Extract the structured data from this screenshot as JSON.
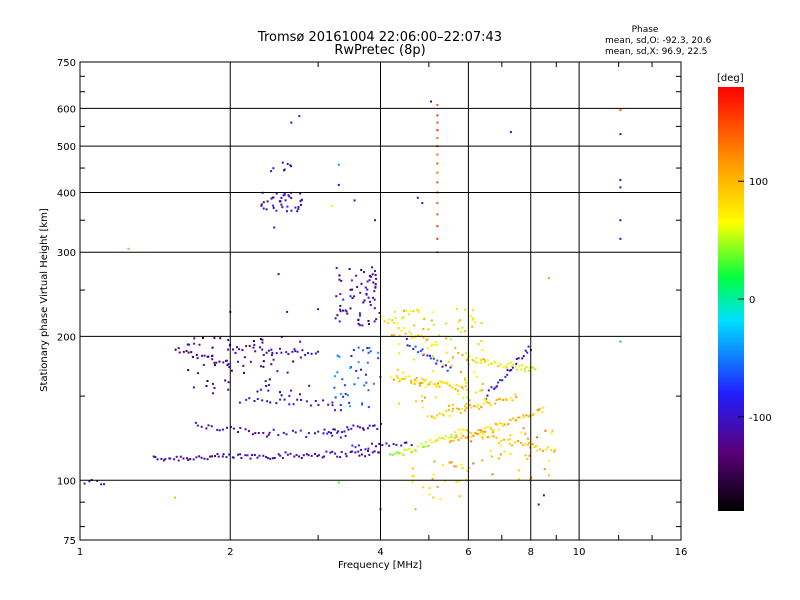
{
  "chart_data": {
    "type": "scatter",
    "title": "Tromsø 20161004 22:06:00–22:07:43",
    "subtitle": "RwPretec (8p)",
    "xlabel": "Frequency [MHz]",
    "ylabel": "Stationary phase Virtual Height [km]",
    "x_scale": "log",
    "y_scale": "log",
    "xlim": [
      1,
      16
    ],
    "ylim": [
      75,
      750
    ],
    "grid": true,
    "x_ticks": [
      "1",
      "2",
      "4",
      "6",
      "8",
      "10",
      "16"
    ],
    "x_tick_values": [
      1,
      2,
      4,
      6,
      8,
      10,
      16
    ],
    "y_ticks": [
      "75",
      "100",
      "200",
      "300",
      "400",
      "500",
      "600",
      "750"
    ],
    "y_tick_values": [
      75,
      100,
      200,
      300,
      400,
      500,
      600,
      750
    ],
    "phase_stats": {
      "heading": "Phase",
      "line_o": "mean, sd,O:  -92.3, 20.6",
      "line_x": "mean, sd,X:   96.9, 22.5"
    },
    "colorbar": {
      "label": "[deg]",
      "ticks": [
        "100",
        "0",
        "-100"
      ],
      "tick_values": [
        100,
        0,
        -100
      ],
      "range": [
        -180,
        180
      ]
    },
    "series": [
      {
        "segments": [
          [
            1.02,
            1.12,
            99,
            99,
            -100,
            6
          ],
          [
            1.4,
            4.0,
            111,
            114,
            -110,
            90
          ],
          [
            1.55,
            2.0,
            188,
            175,
            -130,
            22
          ],
          [
            2.0,
            3.0,
            190,
            184,
            -105,
            28
          ],
          [
            1.7,
            2.4,
            130,
            125,
            -105,
            22
          ],
          [
            2.1,
            3.2,
            147,
            145,
            -100,
            22
          ],
          [
            2.4,
            3.4,
            126,
            124,
            -100,
            18
          ],
          [
            3.1,
            4.0,
            127,
            130,
            -105,
            22
          ],
          [
            3.5,
            4.6,
            117,
            120,
            -95,
            18
          ],
          [
            4.2,
            6.0,
            112,
            128,
            60,
            40
          ],
          [
            5.0,
            7.5,
            135,
            150,
            95,
            40
          ],
          [
            5.5,
            8.5,
            120,
            140,
            100,
            50
          ],
          [
            6.0,
            8.2,
            180,
            170,
            70,
            40
          ],
          [
            4.2,
            6.0,
            165,
            155,
            90,
            45
          ],
          [
            6.0,
            9.0,
            125,
            115,
            95,
            35
          ],
          [
            6.5,
            8.0,
            150,
            190,
            -95,
            25
          ],
          [
            4.5,
            5.5,
            195,
            170,
            -80,
            20
          ],
          [
            4.0,
            5.2,
            220,
            190,
            80,
            25
          ]
        ]
      },
      {
        "clusters": [
          [
            2.3,
            2.8,
            365,
            400,
            -105,
            40
          ],
          [
            2.4,
            2.7,
            440,
            470,
            -110,
            8
          ],
          [
            3.25,
            4.0,
            210,
            280,
            -110,
            70
          ],
          [
            3.2,
            4.0,
            140,
            190,
            -70,
            45
          ],
          [
            4.2,
            6.5,
            140,
            230,
            80,
            110
          ],
          [
            4.5,
            6.0,
            90,
            110,
            90,
            25
          ],
          [
            6.0,
            9.0,
            100,
            130,
            100,
            40
          ],
          [
            1.6,
            2.0,
            150,
            200,
            -125,
            30
          ],
          [
            2.0,
            2.9,
            150,
            200,
            -120,
            40
          ]
        ]
      },
      {
        "isolated": [
          [
            1.25,
            305,
            30
          ],
          [
            2.75,
            578,
            -110
          ],
          [
            2.65,
            560,
            -110
          ],
          [
            3.3,
            457,
            -40
          ],
          [
            3.3,
            415,
            -110
          ],
          [
            3.2,
            375,
            70
          ],
          [
            3.55,
            385,
            -110
          ],
          [
            3.9,
            350,
            -110
          ],
          [
            4.75,
            390,
            -110
          ],
          [
            4.85,
            380,
            -110
          ],
          [
            5.05,
            620,
            -110
          ],
          [
            7.3,
            535,
            -110
          ],
          [
            12.1,
            595,
            140
          ],
          [
            12.1,
            530,
            -110
          ],
          [
            12.1,
            425,
            -110
          ],
          [
            12.1,
            410,
            -110
          ],
          [
            12.1,
            350,
            -110
          ],
          [
            12.1,
            320,
            -110
          ],
          [
            12.1,
            195,
            -30
          ],
          [
            8.7,
            265,
            110
          ],
          [
            1.55,
            92,
            100
          ],
          [
            4.7,
            87,
            110
          ],
          [
            5.1,
            92,
            90
          ],
          [
            8.5,
            93,
            -120
          ],
          [
            8.3,
            89,
            -120
          ],
          [
            3.3,
            99,
            30
          ],
          [
            4.0,
            87,
            -110
          ],
          [
            2.0,
            225,
            -110
          ],
          [
            2.5,
            270,
            -110
          ],
          [
            2.6,
            225,
            -110
          ],
          [
            3.0,
            228,
            -110
          ],
          [
            2.45,
            338,
            -110
          ]
        ]
      },
      {
        "column": {
          "x": 5.2,
          "values": [
            300,
            320,
            340,
            360,
            380,
            400,
            420,
            440,
            460,
            480,
            500,
            520,
            540,
            560,
            580,
            610
          ],
          "phase": 150
        }
      }
    ]
  }
}
